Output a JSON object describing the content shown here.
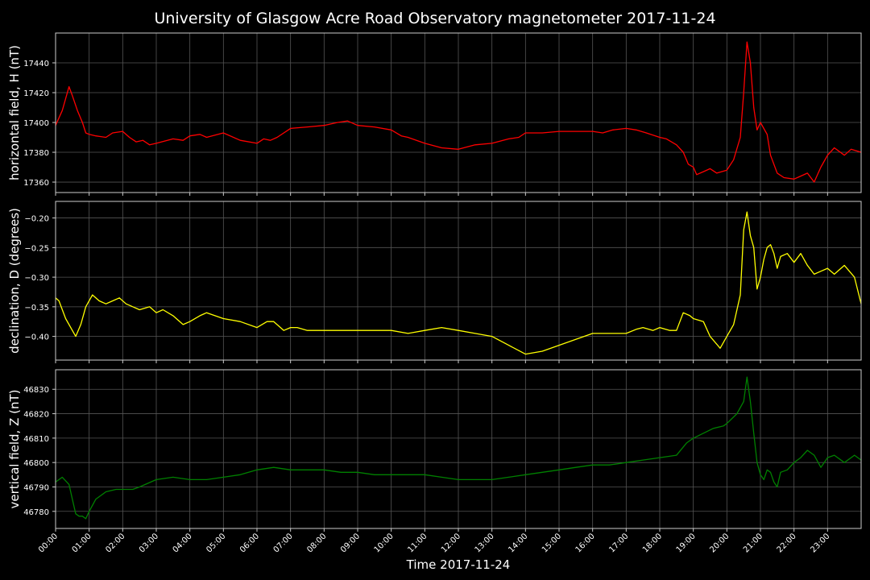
{
  "title": "University of Glasgow Acre Road Observatory magnetometer 2017-11-24",
  "xlabel": "Time 2017-11-24",
  "x_ticks": [
    "00:00",
    "01:00",
    "02:00",
    "03:00",
    "04:00",
    "05:00",
    "06:00",
    "07:00",
    "08:00",
    "09:00",
    "10:00",
    "11:00",
    "12:00",
    "13:00",
    "14:00",
    "15:00",
    "16:00",
    "17:00",
    "18:00",
    "19:00",
    "20:00",
    "21:00",
    "22:00",
    "23:00"
  ],
  "colors": {
    "background": "#000000",
    "grid": "#555555",
    "axes": "#cccccc",
    "text": "#ffffff"
  },
  "chart_data": [
    {
      "type": "line",
      "ylabel": "horizontal field, H (nT)",
      "color": "#ff0000",
      "xlim": [
        0,
        24
      ],
      "ylim": [
        17353,
        17460
      ],
      "yticks": [
        17360,
        17380,
        17400,
        17420,
        17440
      ],
      "ytick_labels": [
        "17360",
        "17380",
        "17400",
        "17420",
        "17440"
      ],
      "grid": true,
      "series": [
        {
          "x": [
            0,
            0.2,
            0.4,
            0.5,
            0.65,
            0.8,
            0.9,
            1.0,
            1.2,
            1.5,
            1.7,
            2.0,
            2.2,
            2.4,
            2.6,
            2.8,
            3.0,
            3.5,
            3.8,
            4.0,
            4.3,
            4.5,
            5.0,
            5.5,
            6.0,
            6.2,
            6.4,
            6.6,
            7.0,
            7.5,
            8.0,
            8.4,
            8.7,
            9.0,
            9.5,
            10.0,
            10.3,
            10.5,
            11.0,
            11.5,
            12.0,
            12.5,
            13.0,
            13.5,
            13.8,
            14.0,
            14.5,
            15.0,
            15.5,
            16.0,
            16.3,
            16.6,
            17.0,
            17.3,
            17.6,
            18.0,
            18.2,
            18.5,
            18.7,
            18.85,
            19.0,
            19.1,
            19.3,
            19.5,
            19.7,
            20.0,
            20.2,
            20.4,
            20.5,
            20.6,
            20.7,
            20.8,
            20.9,
            21.0,
            21.2,
            21.3,
            21.5,
            21.7,
            22.0,
            22.2,
            22.4,
            22.6,
            22.8,
            23.0,
            23.2,
            23.5,
            23.7,
            24.0
          ],
          "y": [
            17398,
            17408,
            17424,
            17418,
            17408,
            17400,
            17393,
            17392,
            17391,
            17390,
            17393,
            17394,
            17390,
            17387,
            17388,
            17385,
            17386,
            17389,
            17388,
            17391,
            17392,
            17390,
            17393,
            17388,
            17386,
            17389,
            17388,
            17390,
            17396,
            17397,
            17398,
            17400,
            17401,
            17398,
            17397,
            17395,
            17391,
            17390,
            17386,
            17383,
            17382,
            17385,
            17386,
            17389,
            17390,
            17393,
            17393,
            17394,
            17394,
            17394,
            17393,
            17395,
            17396,
            17395,
            17393,
            17390,
            17389,
            17385,
            17380,
            17372,
            17370,
            17365,
            17367,
            17369,
            17366,
            17368,
            17375,
            17390,
            17420,
            17454,
            17440,
            17410,
            17395,
            17400,
            17392,
            17378,
            17366,
            17363,
            17362,
            17364,
            17366,
            17360,
            17370,
            17378,
            17383,
            17378,
            17382,
            17380
          ]
        }
      ]
    },
    {
      "type": "line",
      "ylabel": "declination, D (degrees)",
      "color": "#ffff00",
      "xlim": [
        0,
        24
      ],
      "ylim": [
        -0.44,
        -0.172
      ],
      "yticks": [
        -0.4,
        -0.35,
        -0.3,
        -0.25,
        -0.2
      ],
      "ytick_labels": [
        "−0.40",
        "−0.35",
        "−0.30",
        "−0.25",
        "−0.20"
      ],
      "grid": true,
      "series": [
        {
          "x": [
            0,
            0.1,
            0.3,
            0.5,
            0.6,
            0.75,
            0.9,
            1.1,
            1.3,
            1.5,
            1.7,
            1.9,
            2.1,
            2.3,
            2.5,
            2.8,
            3.0,
            3.2,
            3.5,
            3.8,
            4.0,
            4.3,
            4.5,
            5.0,
            5.5,
            6.0,
            6.3,
            6.5,
            6.8,
            7.0,
            7.2,
            7.5,
            8.0,
            8.5,
            9.0,
            9.5,
            10.0,
            10.5,
            11.0,
            11.5,
            12.0,
            12.5,
            13.0,
            13.5,
            14.0,
            14.5,
            15.0,
            15.5,
            16.0,
            16.5,
            17.0,
            17.3,
            17.5,
            17.8,
            18.0,
            18.3,
            18.5,
            18.7,
            18.9,
            19.0,
            19.3,
            19.5,
            19.8,
            20.0,
            20.2,
            20.4,
            20.5,
            20.6,
            20.7,
            20.8,
            20.9,
            21.0,
            21.1,
            21.2,
            21.3,
            21.4,
            21.5,
            21.6,
            21.8,
            22.0,
            22.2,
            22.4,
            22.6,
            22.8,
            23.0,
            23.2,
            23.5,
            23.8,
            24.0
          ],
          "y": [
            -0.335,
            -0.34,
            -0.37,
            -0.39,
            -0.4,
            -0.38,
            -0.35,
            -0.33,
            -0.34,
            -0.345,
            -0.34,
            -0.335,
            -0.345,
            -0.35,
            -0.355,
            -0.35,
            -0.36,
            -0.355,
            -0.365,
            -0.38,
            -0.375,
            -0.365,
            -0.36,
            -0.37,
            -0.375,
            -0.385,
            -0.375,
            -0.375,
            -0.39,
            -0.385,
            -0.385,
            -0.39,
            -0.39,
            -0.39,
            -0.39,
            -0.39,
            -0.39,
            -0.395,
            -0.39,
            -0.385,
            -0.39,
            -0.395,
            -0.4,
            -0.415,
            -0.43,
            -0.425,
            -0.415,
            -0.405,
            -0.395,
            -0.395,
            -0.395,
            -0.388,
            -0.385,
            -0.39,
            -0.385,
            -0.39,
            -0.39,
            -0.36,
            -0.365,
            -0.37,
            -0.375,
            -0.4,
            -0.42,
            -0.4,
            -0.38,
            -0.33,
            -0.22,
            -0.19,
            -0.23,
            -0.25,
            -0.32,
            -0.3,
            -0.27,
            -0.25,
            -0.245,
            -0.26,
            -0.285,
            -0.265,
            -0.26,
            -0.275,
            -0.26,
            -0.28,
            -0.295,
            -0.29,
            -0.285,
            -0.295,
            -0.28,
            -0.3,
            -0.345
          ]
        }
      ]
    },
    {
      "type": "line",
      "ylabel": "vertical field, Z (nT)",
      "color": "#008000",
      "xlim": [
        0,
        24
      ],
      "ylim": [
        46773,
        46838
      ],
      "yticks": [
        46780,
        46790,
        46800,
        46810,
        46820,
        46830
      ],
      "ytick_labels": [
        "46780",
        "46790",
        "46800",
        "46810",
        "46820",
        "46830"
      ],
      "grid": true,
      "series": [
        {
          "x": [
            0,
            0.2,
            0.4,
            0.5,
            0.6,
            0.7,
            0.8,
            0.9,
            1.0,
            1.2,
            1.5,
            1.8,
            2.0,
            2.3,
            2.5,
            3.0,
            3.5,
            4.0,
            4.5,
            5.0,
            5.5,
            6.0,
            6.5,
            7.0,
            7.5,
            8.0,
            8.5,
            9.0,
            9.5,
            10.0,
            10.5,
            11.0,
            11.5,
            12.0,
            12.5,
            13.0,
            13.5,
            14.0,
            14.5,
            15.0,
            15.5,
            16.0,
            16.5,
            17.0,
            17.5,
            18.0,
            18.5,
            18.8,
            19.0,
            19.3,
            19.6,
            19.9,
            20.0,
            20.3,
            20.5,
            20.6,
            20.7,
            20.8,
            20.9,
            21.0,
            21.1,
            21.2,
            21.3,
            21.4,
            21.5,
            21.6,
            21.8,
            22.0,
            22.2,
            22.4,
            22.6,
            22.8,
            23.0,
            23.2,
            23.5,
            23.8,
            24.0
          ],
          "y": [
            46792,
            46794,
            46791,
            46785,
            46779,
            46778,
            46778,
            46777,
            46780,
            46785,
            46788,
            46789,
            46789,
            46789,
            46790,
            46793,
            46794,
            46793,
            46793,
            46794,
            46795,
            46797,
            46798,
            46797,
            46797,
            46797,
            46796,
            46796,
            46795,
            46795,
            46795,
            46795,
            46794,
            46793,
            46793,
            46793,
            46794,
            46795,
            46796,
            46797,
            46798,
            46799,
            46799,
            46800,
            46801,
            46802,
            46803,
            46808,
            46810,
            46812,
            46814,
            46815,
            46816,
            46820,
            46825,
            46835,
            46825,
            46812,
            46800,
            46795,
            46793,
            46797,
            46796,
            46792,
            46790,
            46796,
            46797,
            46800,
            46802,
            46805,
            46803,
            46798,
            46802,
            46803,
            46800,
            46803,
            46801
          ]
        }
      ]
    }
  ]
}
